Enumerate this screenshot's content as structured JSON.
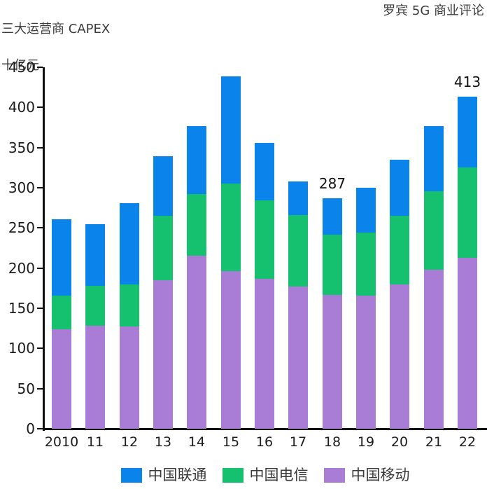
{
  "header": {
    "title_left": "三大运营商 CAPEX",
    "subtitle_left": "十亿元",
    "title_right": "罗宾 5G 商业评论"
  },
  "colors": {
    "unicom_blue": "#0A83EB",
    "telecom_green": "#15C06F",
    "mobile_purple": "#A97DD6",
    "axis": "#111111",
    "title_text": "#3C3C3C"
  },
  "chart_data": {
    "type": "bar",
    "stacked": true,
    "title": "三大运营商 CAPEX",
    "ylabel": "十亿元",
    "xlabel": "",
    "grid": false,
    "legend_position": "bottom",
    "ylim": [
      0,
      450
    ],
    "ytick_step": 50,
    "yticks": [
      "0",
      "50",
      "100",
      "150",
      "200",
      "250",
      "300",
      "350",
      "400",
      "450"
    ],
    "categories": [
      "2010",
      "11",
      "12",
      "13",
      "14",
      "15",
      "16",
      "17",
      "18",
      "19",
      "20",
      "21",
      "22"
    ],
    "series": [
      {
        "key": "mobile",
        "name": "中国移动",
        "color": "#A97DD6",
        "values": [
          124,
          128,
          127,
          185,
          215,
          196,
          187,
          177,
          167,
          166,
          180,
          198,
          213
        ]
      },
      {
        "key": "telecom",
        "name": "中国电信",
        "color": "#15C06F",
        "values": [
          42,
          50,
          53,
          80,
          77,
          109,
          97,
          89,
          75,
          78,
          85,
          98,
          112
        ]
      },
      {
        "key": "unicom",
        "name": "中国联通",
        "color": "#0A83EB",
        "values": [
          95,
          77,
          101,
          74,
          85,
          134,
          72,
          42,
          45,
          56,
          70,
          81,
          88
        ]
      }
    ],
    "totals": [
      261,
      255,
      281,
      339,
      377,
      439,
      356,
      308,
      287,
      300,
      335,
      377,
      413
    ],
    "annotations": [
      {
        "category": "18",
        "text": "287"
      },
      {
        "category": "22",
        "text": "413"
      }
    ]
  },
  "legend": {
    "items": [
      {
        "label": "中国联通",
        "color": "#0A83EB"
      },
      {
        "label": "中国电信",
        "color": "#15C06F"
      },
      {
        "label": "中国移动",
        "color": "#A97DD6"
      }
    ]
  }
}
